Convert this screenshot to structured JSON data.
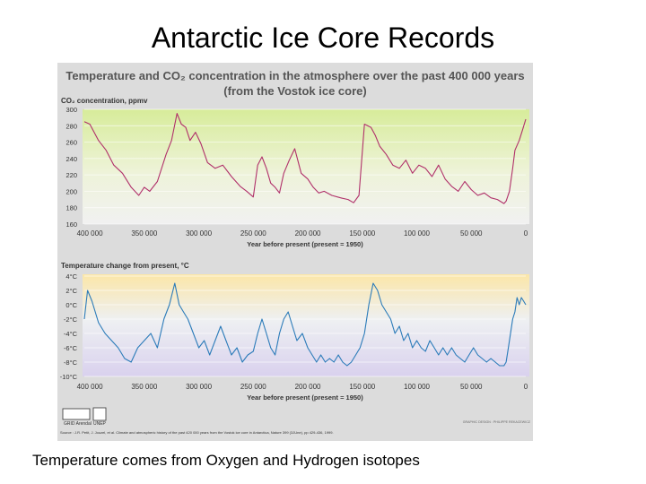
{
  "slide": {
    "title": "Antarctic Ice Core Records",
    "caption": "Temperature comes from Oxygen and Hydrogen isotopes"
  },
  "figure": {
    "title": "Temperature and CO₂ concentration in the atmosphere over the past 400 000 years",
    "subtitle": "(from the Vostok ice core)",
    "source": "Source : J.R. Petit, J. Jouzel, et al. Climate and atmospheric history of the past 420 000 years from the Vostok ice core in Antarctica, Nature 399 (3JUne), pp 429-436, 1999.",
    "credit": "GRAPHIC DESIGN : PHILIPPE REKACEWICZ",
    "logos": [
      "GRID Arendal",
      "UNEP"
    ]
  },
  "colors": {
    "co2_line": "#b0306a",
    "temp_line": "#2b7bb9",
    "panel_bg": "#dcdcdc"
  },
  "chart_data": [
    {
      "type": "line",
      "title": "CO₂ concentration, ppmv",
      "xlabel": "Year before present (present = 1950)",
      "x_tick_labels": [
        "400 000",
        "350 000",
        "300 000",
        "250 000",
        "200 000",
        "150 000",
        "100 000",
        "50 000",
        "0"
      ],
      "x_ticks": [
        400000,
        350000,
        300000,
        250000,
        200000,
        150000,
        100000,
        50000,
        0
      ],
      "xlim": [
        405000,
        0
      ],
      "y_tick_labels": [
        "300",
        "280",
        "260",
        "240",
        "220",
        "200",
        "180",
        "160"
      ],
      "y_ticks": [
        300,
        280,
        260,
        240,
        220,
        200,
        180,
        160
      ],
      "ylim": [
        160,
        300
      ],
      "series": [
        {
          "name": "CO2",
          "x": [
            405000,
            400000,
            392000,
            385000,
            378000,
            370000,
            362000,
            355000,
            350000,
            345000,
            338000,
            330000,
            325000,
            320000,
            316000,
            312000,
            308000,
            303000,
            298000,
            292000,
            285000,
            278000,
            270000,
            262000,
            256000,
            250000,
            246000,
            242000,
            238000,
            234000,
            230000,
            226000,
            222000,
            217000,
            212000,
            206000,
            200000,
            195000,
            190000,
            185000,
            178000,
            170000,
            163000,
            158000,
            153000,
            148000,
            142000,
            138000,
            134000,
            128000,
            122000,
            116000,
            110000,
            104000,
            98000,
            92000,
            86000,
            80000,
            74000,
            68000,
            62000,
            56000,
            50000,
            44000,
            38000,
            32000,
            26000,
            20000,
            18000,
            15000,
            12000,
            10000,
            6000,
            3000,
            0
          ],
          "values": [
            285,
            282,
            262,
            250,
            232,
            222,
            205,
            195,
            205,
            200,
            212,
            245,
            262,
            295,
            282,
            278,
            262,
            272,
            258,
            235,
            228,
            232,
            218,
            206,
            200,
            193,
            232,
            242,
            228,
            210,
            205,
            198,
            222,
            238,
            252,
            222,
            215,
            205,
            198,
            200,
            195,
            192,
            190,
            186,
            195,
            282,
            278,
            268,
            255,
            245,
            232,
            228,
            238,
            222,
            232,
            228,
            218,
            232,
            215,
            206,
            200,
            212,
            202,
            195,
            198,
            192,
            190,
            185,
            188,
            200,
            228,
            250,
            262,
            275,
            288
          ]
        }
      ]
    },
    {
      "type": "line",
      "title": "Temperature change from present, °C",
      "xlabel": "Year before present (present = 1950)",
      "x_tick_labels": [
        "400 000",
        "350 000",
        "300 000",
        "250 000",
        "200 000",
        "150 000",
        "100 000",
        "50 000",
        "0"
      ],
      "x_ticks": [
        400000,
        350000,
        300000,
        250000,
        200000,
        150000,
        100000,
        50000,
        0
      ],
      "xlim": [
        405000,
        0
      ],
      "y_tick_labels": [
        "4°C",
        "2°C",
        "0°C",
        "-2°C",
        "-4°C",
        "-6°C",
        "-8°C",
        "-10°C"
      ],
      "y_ticks": [
        4,
        2,
        0,
        -2,
        -4,
        -6,
        -8,
        -10
      ],
      "ylim": [
        -10,
        4
      ],
      "series": [
        {
          "name": "Temperature",
          "x": [
            405000,
            402000,
            398000,
            392000,
            386000,
            380000,
            374000,
            368000,
            362000,
            356000,
            350000,
            344000,
            338000,
            332000,
            327000,
            322000,
            318000,
            314000,
            310000,
            305000,
            300000,
            295000,
            290000,
            285000,
            280000,
            275000,
            270000,
            265000,
            260000,
            255000,
            250000,
            246000,
            242000,
            238000,
            234000,
            230000,
            226000,
            222000,
            218000,
            214000,
            210000,
            205000,
            200000,
            196000,
            192000,
            188000,
            184000,
            180000,
            176000,
            172000,
            168000,
            164000,
            160000,
            156000,
            152000,
            148000,
            144000,
            140000,
            136000,
            132000,
            128000,
            124000,
            120000,
            116000,
            112000,
            108000,
            104000,
            100000,
            96000,
            92000,
            88000,
            84000,
            80000,
            76000,
            72000,
            68000,
            64000,
            60000,
            56000,
            52000,
            48000,
            44000,
            40000,
            36000,
            32000,
            28000,
            24000,
            20000,
            18000,
            16000,
            14000,
            12000,
            10000,
            8000,
            6000,
            4000,
            2000,
            0
          ],
          "values": [
            -2,
            2,
            0.5,
            -2.5,
            -4,
            -5,
            -6,
            -7.5,
            -8,
            -6,
            -5,
            -4,
            -6,
            -2,
            0,
            3,
            0,
            -1,
            -2,
            -4,
            -6,
            -5,
            -7,
            -5,
            -3,
            -5,
            -7,
            -6,
            -8,
            -7,
            -6.5,
            -4,
            -2,
            -4,
            -6,
            -7,
            -4,
            -2,
            -1,
            -3,
            -5,
            -4,
            -6,
            -7,
            -8,
            -7,
            -8,
            -7.5,
            -8,
            -7,
            -8,
            -8.5,
            -8,
            -7,
            -6,
            -4,
            0,
            3,
            2,
            0,
            -1,
            -2,
            -4,
            -3,
            -5,
            -4,
            -6,
            -5,
            -6,
            -6.5,
            -5,
            -6,
            -7,
            -6,
            -7,
            -6,
            -7,
            -7.5,
            -8,
            -7,
            -6,
            -7,
            -7.5,
            -8,
            -7.5,
            -8,
            -8.5,
            -8.5,
            -8,
            -6,
            -4,
            -2,
            -1,
            1,
            0,
            1,
            0.5,
            0
          ]
        }
      ]
    }
  ]
}
